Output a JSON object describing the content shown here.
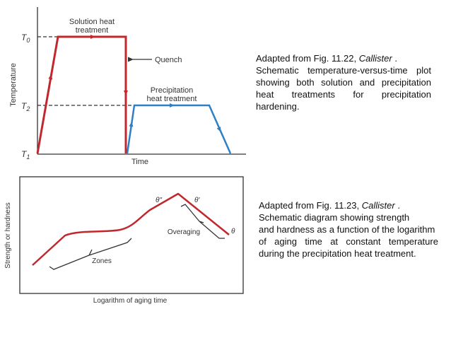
{
  "figure1": {
    "y_axis_label": "Temperature",
    "x_axis_label": "Time",
    "tick_t0": "T",
    "tick_t0_sub": "0",
    "tick_t2": "T",
    "tick_t2_sub": "2",
    "tick_t1": "T",
    "tick_t1_sub": "1",
    "label_solution_line1": "Solution heat",
    "label_solution_line2": "treatment",
    "label_quench": "Quench",
    "label_precip_line1": "Precipitation",
    "label_precip_line2": "heat treatment",
    "colors": {
      "red": "#c0282d",
      "blue": "#2e7fc4",
      "axis": "#333333"
    }
  },
  "figure2": {
    "y_axis_label": "Strength or hardness",
    "x_axis_label": "Logarithm of aging time",
    "label_zones": "Zones",
    "label_overaging": "Overaging",
    "label_theta_dprime": "θ\"",
    "label_theta_prime": "θ'",
    "label_theta": "θ",
    "colors": {
      "curve": "#c0282d",
      "axis": "#333333"
    }
  },
  "caption1": {
    "line1_prefix": "Adapted from Fig. 11.22, ",
    "line1_italic": "Callister",
    "line1_suffix": " .",
    "line2_words": [
      "Schematic",
      "temperature-versus-time",
      "plot"
    ],
    "line3_words": [
      "showing",
      "both",
      "solution",
      "and",
      "precipitation"
    ],
    "line4_words": [
      "heat",
      "treatments",
      "for",
      "precipitation"
    ],
    "line5": "hardening."
  },
  "caption2": {
    "line1_prefix": "Adapted from Fig. 11.23, ",
    "line1_italic": "Callister",
    "line1_suffix": " .",
    "line2": "Schematic diagram showing strength",
    "line3": "and hardness as a function of the logarithm",
    "line4_words": [
      "of",
      "aging",
      "time",
      "at",
      "constant",
      "temperature"
    ],
    "line5": "during the precipitation heat treatment."
  }
}
